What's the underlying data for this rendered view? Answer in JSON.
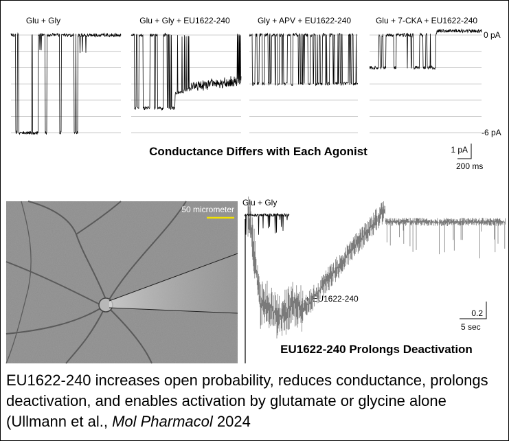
{
  "panel_top": {
    "conditions": [
      "Glu + Gly",
      "Glu + Gly + EU1622-240",
      "Gly + APV + EU1622-240",
      "Glu + 7-CKA + EU1622-240"
    ],
    "level_top": "0 pA",
    "level_bottom": "-6 pA",
    "title": "Conductance Differs with Each Agonist",
    "scale_y": "1 pA",
    "scale_x": "200 ms"
  },
  "panel_bottom": {
    "image_scale": "50 micrometer",
    "trace_label": "Glu + Gly",
    "drug_label": "+ EU1622-240",
    "scale_y": "0.2",
    "scale_x": "5 sec",
    "title": "EU1622-240 Prolongs Deactivation"
  },
  "caption": {
    "text": "EU1622-240 increases open probability, reduces conductance, prolongs deactivation, and enables activation by glutamate or glycine alone (Ullmann et al., ",
    "journal": "Mol Pharmacol",
    "year": " 2024"
  }
}
